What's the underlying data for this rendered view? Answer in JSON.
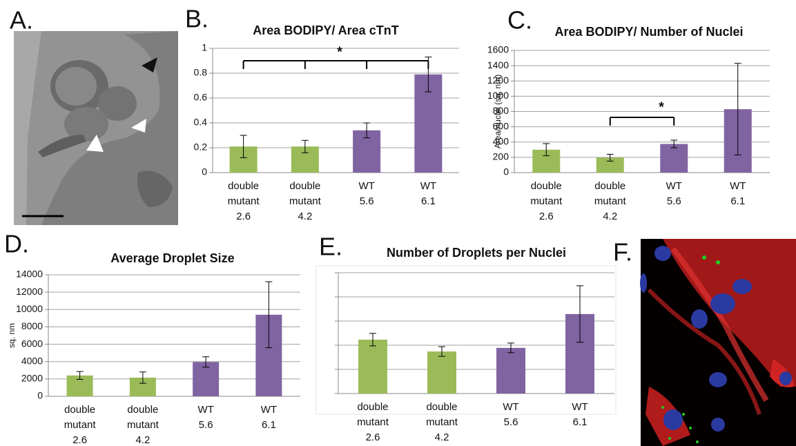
{
  "images": [
    {
      "label": "A."
    },
    {
      "label": "F."
    }
  ],
  "chart_data": [
    {
      "type": "bar",
      "label": "B.",
      "title": "Area BODIPY/ Area cTnT",
      "categories": [
        [
          "double",
          "mutant",
          "2.6"
        ],
        [
          "double",
          "mutant",
          "4.2"
        ],
        [
          "WT",
          "5.6"
        ],
        [
          "WT",
          "6.1"
        ]
      ],
      "values": [
        0.21,
        0.21,
        0.34,
        0.79
      ],
      "errors": [
        0.09,
        0.05,
        0.06,
        0.14
      ],
      "colors": [
        "#9bbb59",
        "#9bbb59",
        "#8064a2",
        "#8064a2"
      ],
      "ylim": [
        0,
        1
      ],
      "yticks": [
        0,
        0.2,
        0.4,
        0.6,
        0.8,
        1
      ],
      "grid": true,
      "annotations": [
        "*"
      ]
    },
    {
      "type": "bar",
      "label": "C.",
      "title": "Area BODIPY/ Number of Nuclei",
      "ylabel": "Area/nuclei  (sq. nm)",
      "categories": [
        [
          "double",
          "mutant",
          "2.6"
        ],
        [
          "double",
          "mutant",
          "4.2"
        ],
        [
          "WT",
          "5.6"
        ],
        [
          "WT",
          "6.1"
        ]
      ],
      "values": [
        300,
        195,
        375,
        830
      ],
      "errors": [
        80,
        45,
        50,
        600
      ],
      "colors": [
        "#9bbb59",
        "#9bbb59",
        "#8064a2",
        "#8064a2"
      ],
      "ylim": [
        0,
        1600
      ],
      "yticks": [
        0,
        200,
        400,
        600,
        800,
        1000,
        1200,
        1400,
        1600
      ],
      "grid": true,
      "annotations": [
        "*"
      ]
    },
    {
      "type": "bar",
      "label": "D.",
      "title": "Average Droplet Size",
      "ylabel": "sq. nm",
      "categories": [
        [
          "double",
          "mutant",
          "2.6"
        ],
        [
          "double",
          "mutant",
          "4.2"
        ],
        [
          "WT",
          "5.6"
        ],
        [
          "WT",
          "6.1"
        ]
      ],
      "values": [
        2400,
        2150,
        3950,
        9400
      ],
      "errors": [
        450,
        650,
        600,
        3800
      ],
      "colors": [
        "#9bbb59",
        "#9bbb59",
        "#8064a2",
        "#8064a2"
      ],
      "ylim": [
        0,
        14000
      ],
      "yticks": [
        0,
        2000,
        4000,
        6000,
        8000,
        10000,
        12000,
        14000
      ],
      "grid": true
    },
    {
      "type": "bar",
      "label": "E.",
      "title": "Number of Droplets per Nuclei",
      "categories": [
        [
          "double",
          "mutant",
          "2.6"
        ],
        [
          "double",
          "mutant",
          "4.2"
        ],
        [
          "WT",
          "5.6"
        ],
        [
          "WT",
          "6.1"
        ]
      ],
      "values": [
        2.23,
        1.74,
        1.89,
        3.29
      ],
      "errors": [
        0.26,
        0.2,
        0.2,
        1.17
      ],
      "colors": [
        "#9bbb59",
        "#9bbb59",
        "#8064a2",
        "#8064a2"
      ],
      "ylim": [
        0,
        5
      ],
      "yticks": [
        0,
        1,
        2,
        3,
        4,
        5
      ],
      "grid": true,
      "ytick_labels": false
    }
  ]
}
